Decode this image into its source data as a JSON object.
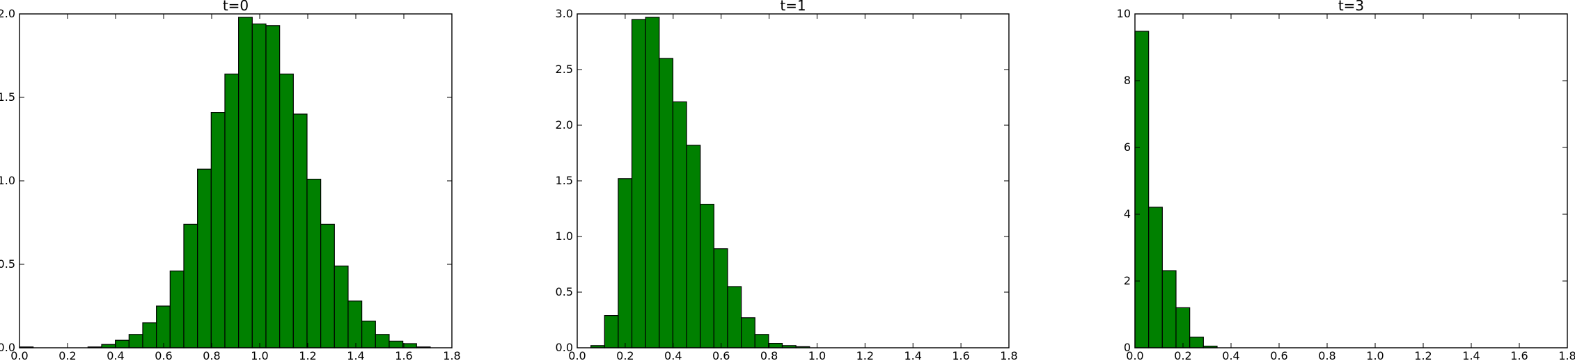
{
  "bar_color": "#008000",
  "chart_data": [
    {
      "type": "bar",
      "title": "t=0",
      "xlim": [
        0,
        1.8
      ],
      "ylim": [
        0,
        2.0
      ],
      "xticks": [
        "0.0",
        "0.2",
        "0.4",
        "0.6",
        "0.8",
        "1.0",
        "1.2",
        "1.4",
        "1.6",
        "1.8"
      ],
      "yticks": [
        "0.0",
        "0.5",
        "1.0",
        "1.5",
        "2.0"
      ],
      "bin_width": 0.057,
      "bins": [
        {
          "x": 0.0,
          "h": 0.005
        },
        {
          "x": 0.285,
          "h": 0.005
        },
        {
          "x": 0.342,
          "h": 0.02
        },
        {
          "x": 0.399,
          "h": 0.045
        },
        {
          "x": 0.456,
          "h": 0.08
        },
        {
          "x": 0.513,
          "h": 0.15
        },
        {
          "x": 0.57,
          "h": 0.25
        },
        {
          "x": 0.627,
          "h": 0.46
        },
        {
          "x": 0.684,
          "h": 0.74
        },
        {
          "x": 0.741,
          "h": 1.07
        },
        {
          "x": 0.798,
          "h": 1.41
        },
        {
          "x": 0.855,
          "h": 1.64
        },
        {
          "x": 0.912,
          "h": 1.98
        },
        {
          "x": 0.969,
          "h": 1.94
        },
        {
          "x": 1.026,
          "h": 1.93
        },
        {
          "x": 1.083,
          "h": 1.64
        },
        {
          "x": 1.14,
          "h": 1.4
        },
        {
          "x": 1.197,
          "h": 1.01
        },
        {
          "x": 1.254,
          "h": 0.74
        },
        {
          "x": 1.311,
          "h": 0.49
        },
        {
          "x": 1.368,
          "h": 0.28
        },
        {
          "x": 1.425,
          "h": 0.16
        },
        {
          "x": 1.482,
          "h": 0.08
        },
        {
          "x": 1.539,
          "h": 0.04
        },
        {
          "x": 1.596,
          "h": 0.025
        },
        {
          "x": 1.653,
          "h": 0.005
        }
      ]
    },
    {
      "type": "bar",
      "title": "t=1",
      "xlim": [
        0,
        1.8
      ],
      "ylim": [
        0,
        3.0
      ],
      "xticks": [
        "0.0",
        "0.2",
        "0.4",
        "0.6",
        "0.8",
        "1.0",
        "1.2",
        "1.4",
        "1.6",
        "1.8"
      ],
      "yticks": [
        "0.0",
        "0.5",
        "1.0",
        "1.5",
        "2.0",
        "2.5",
        "3.0"
      ],
      "bin_width": 0.057,
      "bins": [
        {
          "x": 0.057,
          "h": 0.02
        },
        {
          "x": 0.114,
          "h": 0.29
        },
        {
          "x": 0.171,
          "h": 1.52
        },
        {
          "x": 0.228,
          "h": 2.95
        },
        {
          "x": 0.285,
          "h": 2.97
        },
        {
          "x": 0.342,
          "h": 2.6
        },
        {
          "x": 0.399,
          "h": 2.21
        },
        {
          "x": 0.456,
          "h": 1.82
        },
        {
          "x": 0.513,
          "h": 1.29
        },
        {
          "x": 0.57,
          "h": 0.89
        },
        {
          "x": 0.627,
          "h": 0.55
        },
        {
          "x": 0.684,
          "h": 0.27
        },
        {
          "x": 0.741,
          "h": 0.12
        },
        {
          "x": 0.798,
          "h": 0.04
        },
        {
          "x": 0.855,
          "h": 0.02
        },
        {
          "x": 0.912,
          "h": 0.01
        }
      ]
    },
    {
      "type": "bar",
      "title": "t=3",
      "xlim": [
        0,
        1.8
      ],
      "ylim": [
        0,
        10
      ],
      "xticks": [
        "0.0",
        "0.2",
        "0.4",
        "0.6",
        "0.8",
        "1.0",
        "1.2",
        "1.4",
        "1.6",
        "1.8"
      ],
      "yticks": [
        "0",
        "2",
        "4",
        "6",
        "8",
        "10"
      ],
      "bin_width": 0.057,
      "bins": [
        {
          "x": 0.0,
          "h": 9.48
        },
        {
          "x": 0.057,
          "h": 4.21
        },
        {
          "x": 0.114,
          "h": 2.31
        },
        {
          "x": 0.171,
          "h": 1.2
        },
        {
          "x": 0.228,
          "h": 0.32
        },
        {
          "x": 0.285,
          "h": 0.05
        }
      ]
    }
  ]
}
